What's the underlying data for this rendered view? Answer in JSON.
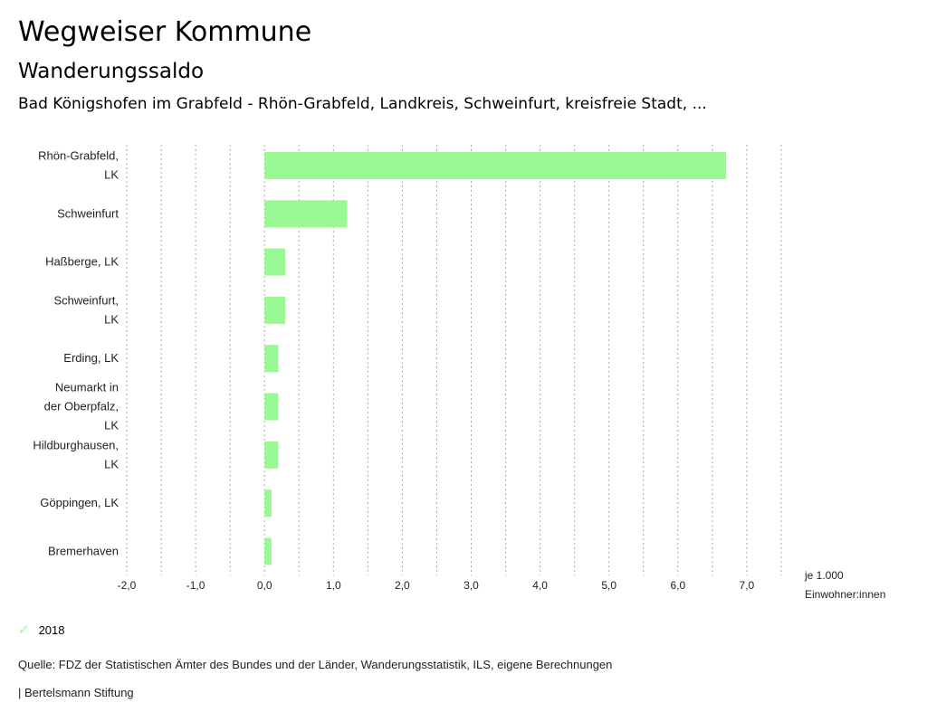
{
  "header": {
    "title": "Wegweiser Kommune",
    "subtitle": "Wanderungssaldo",
    "region": "Bad Königshofen im Grabfeld - Rhön-Grabfeld, Landkreis, Schweinfurt, kreisfreie Stadt, ..."
  },
  "chart_data": {
    "type": "bar",
    "orientation": "horizontal",
    "categories": [
      [
        "Rhön-Grabfeld,",
        "LK"
      ],
      [
        "Schweinfurt"
      ],
      [
        "Haßberge, LK"
      ],
      [
        "Schweinfurt,",
        "LK"
      ],
      [
        "Erding, LK"
      ],
      [
        "Neumarkt in",
        "der Oberpfalz,",
        "LK"
      ],
      [
        "Hildburghausen,",
        "LK"
      ],
      [
        "Göppingen, LK"
      ],
      [
        "Bremerhaven"
      ]
    ],
    "series": [
      {
        "name": "2018",
        "values": [
          6.7,
          1.2,
          0.3,
          0.3,
          0.2,
          0.2,
          0.2,
          0.1,
          0.1
        ],
        "color": "#9af995"
      }
    ],
    "xlim": [
      -2,
      7.5
    ],
    "xticks": [
      -2,
      -1,
      0,
      1,
      2,
      3,
      4,
      5,
      6,
      7
    ],
    "xtick_labels": [
      "-2,0",
      "-1,0",
      "0,0",
      "1,0",
      "2,0",
      "3,0",
      "4,0",
      "5,0",
      "6,0",
      "7,0"
    ],
    "xlabel": [
      "je 1.000",
      "Einwohner:innen"
    ],
    "grid": "vertical dotted every 0.5",
    "legend": "bottom-left"
  },
  "legend": {
    "label": "2018"
  },
  "footer": {
    "source": "Quelle: FDZ der Statistischen Ämter des Bundes und der Länder, Wanderungsstatistik, ILS, eigene Berechnungen",
    "org": "| Bertelsmann Stiftung"
  }
}
